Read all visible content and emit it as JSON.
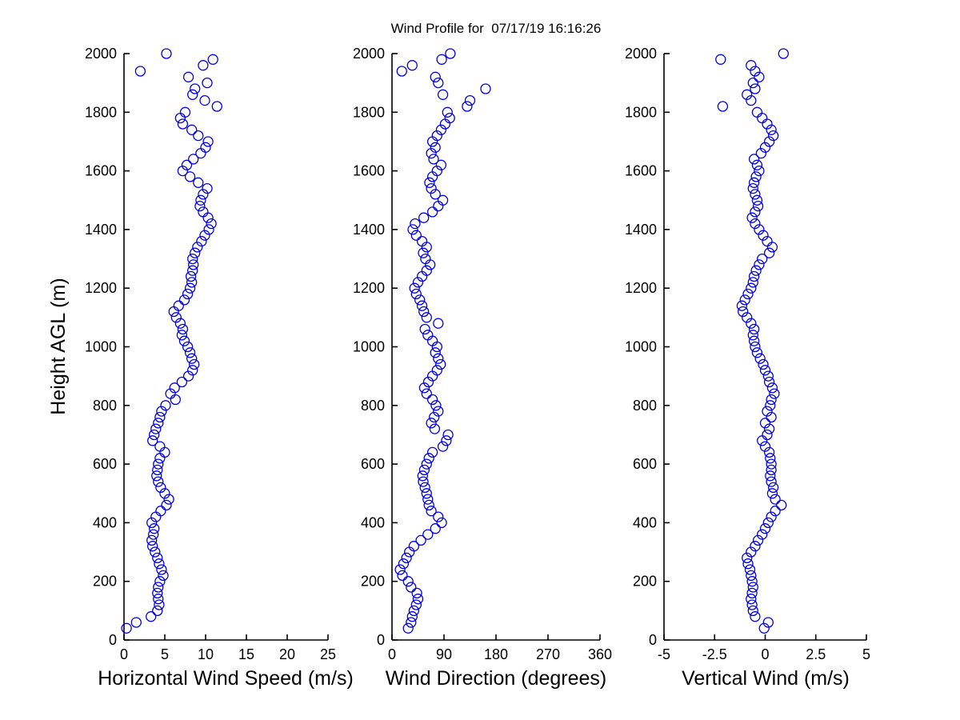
{
  "title": "Wind Profile for  07/17/19 16:16:26",
  "chart_data": {
    "type": "scatter",
    "title": "Wind Profile for  07/17/19 16:16:26",
    "ylabel": "Height AGL (m)",
    "ylim": [
      0,
      2000
    ],
    "yticks": [
      0,
      200,
      400,
      600,
      800,
      1000,
      1200,
      1400,
      1600,
      1800,
      2000
    ],
    "grid": false,
    "legend": "none",
    "marker": {
      "shape": "circle-open",
      "color": "#0000E6",
      "radius_px": 6
    },
    "heights_m": [
      40,
      60,
      80,
      100,
      120,
      140,
      160,
      180,
      200,
      220,
      240,
      260,
      280,
      300,
      320,
      340,
      360,
      380,
      400,
      420,
      440,
      460,
      480,
      500,
      520,
      540,
      560,
      580,
      600,
      620,
      640,
      660,
      680,
      700,
      720,
      740,
      760,
      780,
      800,
      820,
      840,
      860,
      880,
      900,
      920,
      940,
      960,
      980,
      1000,
      1020,
      1040,
      1060,
      1080,
      1100,
      1120,
      1140,
      1160,
      1180,
      1200,
      1220,
      1240,
      1260,
      1280,
      1300,
      1320,
      1340,
      1360,
      1380,
      1400,
      1420,
      1440,
      1460,
      1480,
      1500,
      1520,
      1540,
      1560,
      1580,
      1600,
      1620,
      1640,
      1660,
      1680,
      1700,
      1720,
      1740,
      1760,
      1780,
      1800,
      1820,
      1840,
      1860,
      1880,
      1900,
      1920,
      1940,
      1960,
      1980,
      2000
    ],
    "panels": [
      {
        "xlabel": "Horizontal Wind Speed (m/s)",
        "xlim": [
          0,
          25
        ],
        "xticks": [
          0,
          5,
          10,
          15,
          20,
          25
        ],
        "values": [
          0.3,
          1.5,
          3.3,
          4.1,
          4.3,
          4.2,
          4.1,
          4.2,
          4.4,
          4.8,
          4.6,
          4.3,
          4.1,
          3.8,
          3.5,
          3.4,
          3.6,
          3.7,
          3.4,
          3.9,
          4.5,
          5.2,
          5.5,
          5.0,
          4.5,
          4.2,
          4.0,
          4.1,
          4.2,
          4.4,
          5.0,
          4.4,
          3.5,
          3.7,
          3.9,
          4.2,
          4.4,
          4.6,
          5.1,
          6.3,
          5.7,
          6.2,
          7.1,
          7.9,
          8.4,
          8.6,
          8.3,
          8.1,
          7.8,
          7.4,
          7.1,
          7.2,
          6.9,
          6.4,
          6.1,
          6.7,
          7.4,
          7.8,
          8.1,
          8.3,
          8.2,
          8.4,
          8.5,
          8.4,
          8.7,
          9.0,
          9.5,
          9.9,
          10.4,
          10.7,
          10.3,
          9.7,
          9.3,
          9.4,
          9.7,
          10.2,
          9.1,
          8.1,
          7.2,
          7.7,
          8.5,
          9.4,
          10.0,
          10.3,
          9.1,
          8.3,
          7.2,
          6.9,
          7.5,
          11.4,
          9.9,
          8.4,
          8.7,
          10.2,
          7.9,
          2.0,
          9.7,
          10.9,
          5.2
        ]
      },
      {
        "xlabel": "Wind Direction (degrees)",
        "xlim": [
          0,
          360
        ],
        "xticks": [
          0,
          90,
          180,
          270,
          360
        ],
        "values": [
          28,
          33,
          35,
          38,
          42,
          45,
          43,
          33,
          28,
          18,
          14,
          20,
          25,
          30,
          38,
          50,
          62,
          75,
          86,
          80,
          68,
          64,
          62,
          60,
          57,
          54,
          53,
          56,
          60,
          64,
          70,
          88,
          94,
          97,
          74,
          68,
          73,
          80,
          76,
          70,
          60,
          56,
          63,
          70,
          78,
          84,
          80,
          75,
          78,
          70,
          62,
          57,
          80,
          60,
          55,
          52,
          48,
          42,
          39,
          45,
          52,
          60,
          66,
          58,
          54,
          60,
          52,
          42,
          36,
          40,
          55,
          70,
          80,
          88,
          75,
          68,
          65,
          70,
          78,
          85,
          72,
          68,
          75,
          70,
          78,
          85,
          92,
          100,
          96,
          130,
          135,
          88,
          162,
          80,
          75,
          17,
          35,
          86,
          101
        ]
      },
      {
        "xlabel": "Vertical Wind (m/s)",
        "xlim": [
          -5,
          5
        ],
        "xticks": [
          -5,
          -2.5,
          0,
          2.5,
          5
        ],
        "values": [
          -0.05,
          0.15,
          -0.5,
          -0.6,
          -0.65,
          -0.7,
          -0.65,
          -0.6,
          -0.65,
          -0.7,
          -0.75,
          -0.85,
          -0.9,
          -0.7,
          -0.5,
          -0.35,
          -0.15,
          0.0,
          0.15,
          0.3,
          0.5,
          0.8,
          0.5,
          0.35,
          0.4,
          0.3,
          0.25,
          0.3,
          0.3,
          0.25,
          0.2,
          0.0,
          -0.15,
          0.1,
          0.2,
          0.0,
          0.3,
          0.1,
          0.25,
          0.3,
          0.45,
          0.35,
          0.2,
          0.15,
          0.0,
          -0.1,
          -0.25,
          -0.4,
          -0.5,
          -0.55,
          -0.6,
          -0.55,
          -0.7,
          -0.9,
          -1.1,
          -1.15,
          -1.0,
          -0.85,
          -0.7,
          -0.6,
          -0.55,
          -0.45,
          -0.3,
          -0.15,
          0.2,
          0.35,
          0.1,
          -0.1,
          -0.3,
          -0.5,
          -0.65,
          -0.5,
          -0.35,
          -0.4,
          -0.5,
          -0.6,
          -0.55,
          -0.45,
          -0.3,
          -0.4,
          -0.55,
          -0.2,
          0.0,
          0.2,
          0.4,
          0.3,
          0.1,
          -0.15,
          -0.4,
          -2.1,
          -0.7,
          -0.9,
          -0.5,
          -0.6,
          -0.3,
          -0.5,
          -0.7,
          -2.2,
          0.9
        ]
      }
    ]
  }
}
